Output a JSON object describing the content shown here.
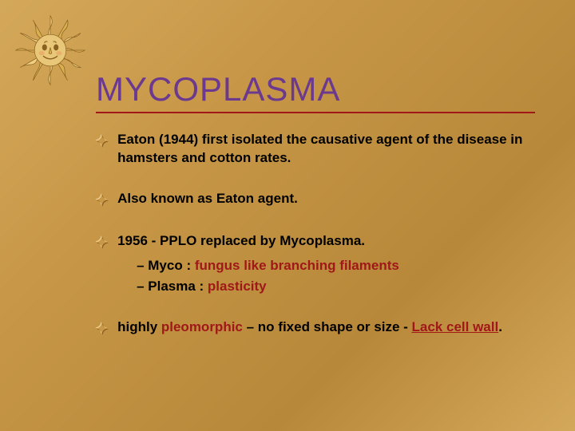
{
  "background_gradient": [
    "#d4a85a",
    "#c89848",
    "#b8883a",
    "#d4a85a"
  ],
  "title": {
    "text": "MYCOPLASMA",
    "color": "#6b3a8f",
    "underline_color": "#a01818",
    "fontsize": 42
  },
  "accent_color": "#a01818",
  "body_fontsize": 17,
  "bullet_marker": "✦",
  "bullets": [
    {
      "runs": [
        {
          "text": "Eaton (1944) first isolated the causative agent of the disease in hamsters and cotton rates."
        }
      ]
    },
    {
      "runs": [
        {
          "text": "Also known as Eaton agent."
        }
      ]
    },
    {
      "runs": [
        {
          "text": "1956 - PPLO replaced by Mycoplasma."
        }
      ],
      "subs": [
        {
          "prefix": "–  Myco : ",
          "accent": "fungus like branching filaments"
        },
        {
          "prefix": "–  Plasma : ",
          "accent": "plasticity"
        }
      ]
    },
    {
      "runs": [
        {
          "text": "highly "
        },
        {
          "text": "pleomorphic",
          "accent": true
        },
        {
          "text": " – no fixed shape or size - "
        },
        {
          "text": "Lack cell wall",
          "accent": true,
          "underline": true
        },
        {
          "text": "."
        }
      ]
    }
  ],
  "sun": {
    "face_color": "#e8c878",
    "ray_colors": [
      "#f0d080",
      "#d8b050",
      "#c09030"
    ],
    "stroke": "#8a6020"
  }
}
